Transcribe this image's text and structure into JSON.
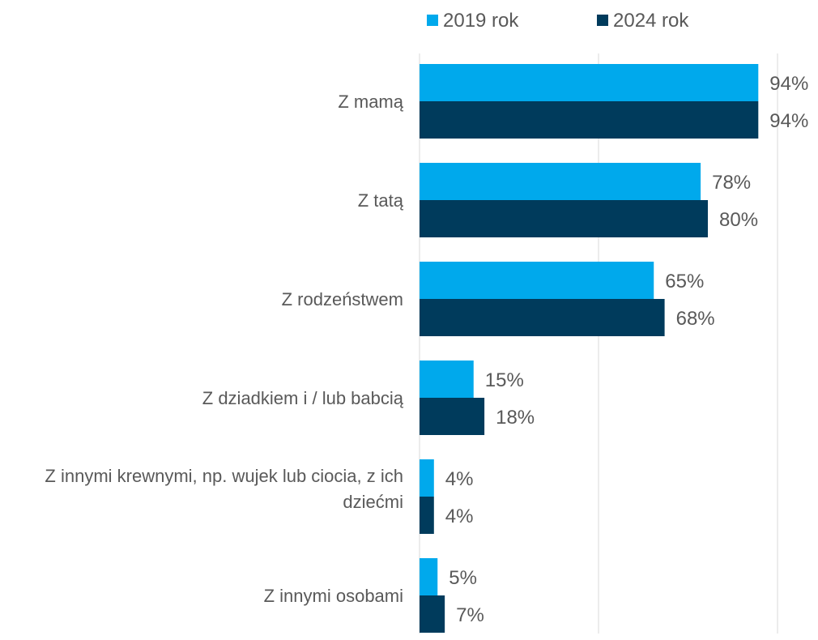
{
  "chart_data": {
    "type": "bar",
    "orientation": "horizontal",
    "categories": [
      "Z mamą",
      "Z tatą",
      "Z rodzeństwem",
      "Z dziadkiem i / lub babcią",
      "Z innymi krewnymi, np. wujek lub ciocia, z ich dziećmi",
      "Z innymi osobami"
    ],
    "category_lines": [
      [
        "Z mamą"
      ],
      [
        "Z tatą"
      ],
      [
        "Z rodzeństwem"
      ],
      [
        "Z dziadkiem i / lub babcią"
      ],
      [
        "Z innymi krewnymi, np. wujek lub ciocia, z ich",
        "dziećmi"
      ],
      [
        "Z innymi osobami"
      ]
    ],
    "series": [
      {
        "name": "2019 rok",
        "color": "#00a9ec",
        "values": [
          94,
          78,
          65,
          15,
          4,
          5
        ],
        "labels": [
          "94%",
          "78%",
          "65%",
          "15%",
          "4%",
          "5%"
        ]
      },
      {
        "name": "2024 rok",
        "color": "#003b5c",
        "values": [
          94,
          80,
          68,
          18,
          4,
          7
        ],
        "labels": [
          "94%",
          "80%",
          "68%",
          "18%",
          "4%",
          "7%"
        ]
      }
    ],
    "xlim": [
      0,
      100
    ],
    "gridlines": true,
    "legend_position": "top",
    "value_format": "percent"
  }
}
